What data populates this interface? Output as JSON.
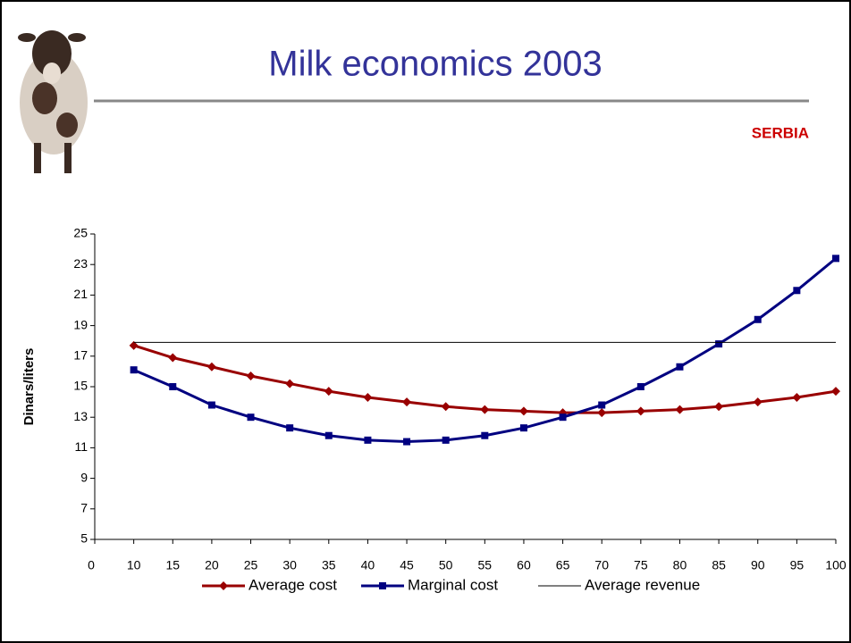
{
  "chart_data": {
    "type": "line",
    "title": "Milk economics 2003",
    "subtitle": "SERBIA",
    "y_label": "Dinars/liters",
    "categories": [
      "0",
      "10",
      "15",
      "20",
      "25",
      "30",
      "35",
      "40",
      "45",
      "50",
      "55",
      "60",
      "65",
      "70",
      "75",
      "80",
      "85",
      "90",
      "95",
      "100"
    ],
    "series": [
      {
        "name": "Average cost",
        "color": "#990000",
        "marker": "diamond",
        "values": [
          null,
          17.7,
          16.9,
          16.3,
          15.7,
          15.2,
          14.7,
          14.3,
          14.0,
          13.7,
          13.5,
          13.4,
          13.3,
          13.3,
          13.4,
          13.5,
          13.7,
          14.0,
          14.3,
          14.7
        ]
      },
      {
        "name": "Marginal cost",
        "color": "#000080",
        "marker": "square",
        "values": [
          null,
          16.1,
          15.0,
          13.8,
          13.0,
          12.3,
          11.8,
          11.5,
          11.4,
          11.5,
          11.8,
          12.3,
          13.0,
          13.8,
          15.0,
          16.3,
          17.8,
          19.4,
          21.3,
          23.4
        ]
      },
      {
        "name": "Average revenue",
        "color": "#000000",
        "marker": "none",
        "values": [
          null,
          17.9,
          17.9,
          17.9,
          17.9,
          17.9,
          17.9,
          17.9,
          17.9,
          17.9,
          17.9,
          17.9,
          17.9,
          17.9,
          17.9,
          17.9,
          17.9,
          17.9,
          17.9,
          17.9
        ]
      }
    ],
    "ylim": [
      5,
      25
    ],
    "yticks": [
      5,
      7,
      9,
      11,
      13,
      15,
      17,
      19,
      21,
      23,
      25
    ],
    "grid": false,
    "legend": "bottom"
  }
}
